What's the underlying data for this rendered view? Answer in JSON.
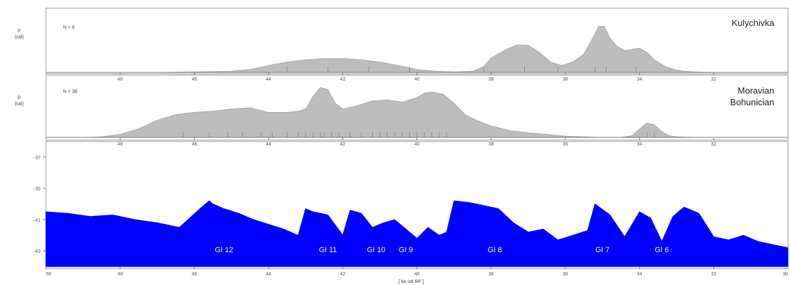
{
  "chart_data": [
    {
      "type": "area",
      "panel": "top",
      "label": "Kulychivka",
      "n_label": "N = 8",
      "ylabel_line1": "p",
      "ylabel_line2": "(cal)",
      "color": "#bdbdbd",
      "x_ticks": [
        "48",
        "46",
        "44",
        "42",
        "40",
        "38",
        "36",
        "34",
        "32"
      ],
      "xlim": [
        50,
        30
      ],
      "ylim": [
        0,
        1
      ],
      "x": [
        50,
        48,
        47,
        46,
        45,
        44.5,
        44,
        43.5,
        43,
        42.5,
        42,
        41.5,
        41,
        40.5,
        40,
        39.5,
        39,
        38.5,
        38.2,
        38,
        37.6,
        37.3,
        37,
        36.7,
        36.4,
        36.1,
        35.8,
        35.5,
        35.3,
        35.1,
        34.95,
        34.8,
        34.6,
        34.4,
        34.2,
        34.0,
        33.8,
        33.6,
        33.3,
        33,
        32.8,
        32.5,
        32,
        31,
        30
      ],
      "y": [
        0,
        0,
        0,
        0.01,
        0.02,
        0.05,
        0.12,
        0.18,
        0.22,
        0.24,
        0.24,
        0.22,
        0.18,
        0.12,
        0.05,
        0.02,
        0.01,
        0.02,
        0.1,
        0.25,
        0.4,
        0.48,
        0.47,
        0.35,
        0.18,
        0.12,
        0.18,
        0.32,
        0.55,
        0.8,
        0.8,
        0.6,
        0.45,
        0.38,
        0.4,
        0.42,
        0.35,
        0.22,
        0.1,
        0.04,
        0.02,
        0.01,
        0,
        0,
        0
      ],
      "rug": [
        43.5,
        42.4,
        41.3,
        40.2,
        38.2,
        37.1,
        36.2,
        35.2,
        34.9,
        34.1
      ]
    },
    {
      "type": "area",
      "panel": "middle",
      "label_line1": "Moravian",
      "label_line2": "Bohunician",
      "n_label": "N = 38",
      "ylabel_line1": "p",
      "ylabel_line2": "(cal)",
      "color": "#bdbdbd",
      "x_ticks": [
        "48",
        "46",
        "44",
        "42",
        "40",
        "38",
        "36",
        "34",
        "32"
      ],
      "xlim": [
        50,
        30
      ],
      "ylim": [
        0,
        1
      ],
      "x": [
        50,
        49,
        48.5,
        48,
        47.5,
        47,
        46.5,
        46,
        45.5,
        45,
        44.5,
        44,
        43.5,
        43.2,
        43,
        42.8,
        42.6,
        42.4,
        42.2,
        42,
        41.6,
        41.2,
        40.8,
        40.4,
        40,
        39.8,
        39.6,
        39.3,
        39,
        38.7,
        38.4,
        38,
        37.5,
        37,
        36.5,
        36,
        35.5,
        35,
        34.5,
        34.2,
        34,
        33.8,
        33.6,
        33.4,
        33.2,
        33,
        32.5,
        32,
        31,
        30
      ],
      "y": [
        0,
        0,
        0.01,
        0.05,
        0.15,
        0.3,
        0.4,
        0.44,
        0.46,
        0.5,
        0.52,
        0.44,
        0.44,
        0.46,
        0.5,
        0.72,
        0.88,
        0.84,
        0.6,
        0.5,
        0.56,
        0.64,
        0.66,
        0.62,
        0.7,
        0.78,
        0.8,
        0.76,
        0.6,
        0.4,
        0.3,
        0.2,
        0.12,
        0.08,
        0.05,
        0.02,
        0.01,
        0,
        0,
        0.03,
        0.15,
        0.25,
        0.22,
        0.1,
        0.03,
        0.01,
        0,
        0,
        0,
        0
      ],
      "rug": [
        46.3,
        45.6,
        45.1,
        44.7,
        44.2,
        43.9,
        43.5,
        43.2,
        43.0,
        42.8,
        42.6,
        42.5,
        42.3,
        42.1,
        41.8,
        41.5,
        41.2,
        41.0,
        40.8,
        40.6,
        40.4,
        40.2,
        40.0,
        39.8,
        39.6,
        39.4,
        39.2,
        33.8,
        33.6
      ]
    },
    {
      "type": "area",
      "panel": "bottom",
      "color": "#0000ff",
      "y_ticks": [
        "-37",
        "-39",
        "-41",
        "-43"
      ],
      "x_ticks": [
        "50",
        "48",
        "46",
        "44",
        "42",
        "40",
        "38",
        "36",
        "34",
        "32",
        "30"
      ],
      "xlabel": "[ ka cal BP ]",
      "xlim": [
        50,
        30
      ],
      "ylim": [
        -44,
        -36
      ],
      "x": [
        50.0,
        49.4,
        48.8,
        48.2,
        47.6,
        47.0,
        46.4,
        45.8,
        45.6,
        45.5,
        45.2,
        44.8,
        44.4,
        44.0,
        43.6,
        43.2,
        43.0,
        42.8,
        42.4,
        42.0,
        41.8,
        41.5,
        41.2,
        40.9,
        40.6,
        40.3,
        40.0,
        39.7,
        39.4,
        39.2,
        39.0,
        38.6,
        38.2,
        37.8,
        37.4,
        37.0,
        36.6,
        36.2,
        35.8,
        35.4,
        35.2,
        34.8,
        34.4,
        34.0,
        33.7,
        33.4,
        33.1,
        32.8,
        32.4,
        32.0,
        31.6,
        31.2,
        30.8,
        30.4,
        30.0
      ],
      "y": [
        -40.5,
        -40.6,
        -40.8,
        -40.7,
        -41.0,
        -41.2,
        -41.5,
        -40.2,
        -39.8,
        -40.0,
        -40.3,
        -40.6,
        -41.0,
        -41.3,
        -41.6,
        -42.0,
        -40.3,
        -40.5,
        -40.7,
        -42.0,
        -40.4,
        -40.6,
        -41.5,
        -41.2,
        -41.0,
        -41.6,
        -42.2,
        -41.5,
        -42.0,
        -41.8,
        -39.8,
        -39.9,
        -40.1,
        -40.3,
        -41.2,
        -41.8,
        -41.6,
        -42.3,
        -42.0,
        -41.7,
        -40.0,
        -40.7,
        -42.1,
        -40.5,
        -40.9,
        -42.4,
        -40.8,
        -40.2,
        -40.6,
        -42.1,
        -42.3,
        -42.0,
        -42.4,
        -42.6,
        -42.8
      ],
      "annotations": [
        {
          "text": "GI 12",
          "x": 45.2
        },
        {
          "text": "GI 11",
          "x": 42.4
        },
        {
          "text": "GI 10",
          "x": 41.1
        },
        {
          "text": "GI 9",
          "x": 40.3
        },
        {
          "text": "GI 8",
          "x": 37.9
        },
        {
          "text": "GI 7",
          "x": 35.0
        },
        {
          "text": "GI 6",
          "x": 33.4
        }
      ]
    }
  ]
}
